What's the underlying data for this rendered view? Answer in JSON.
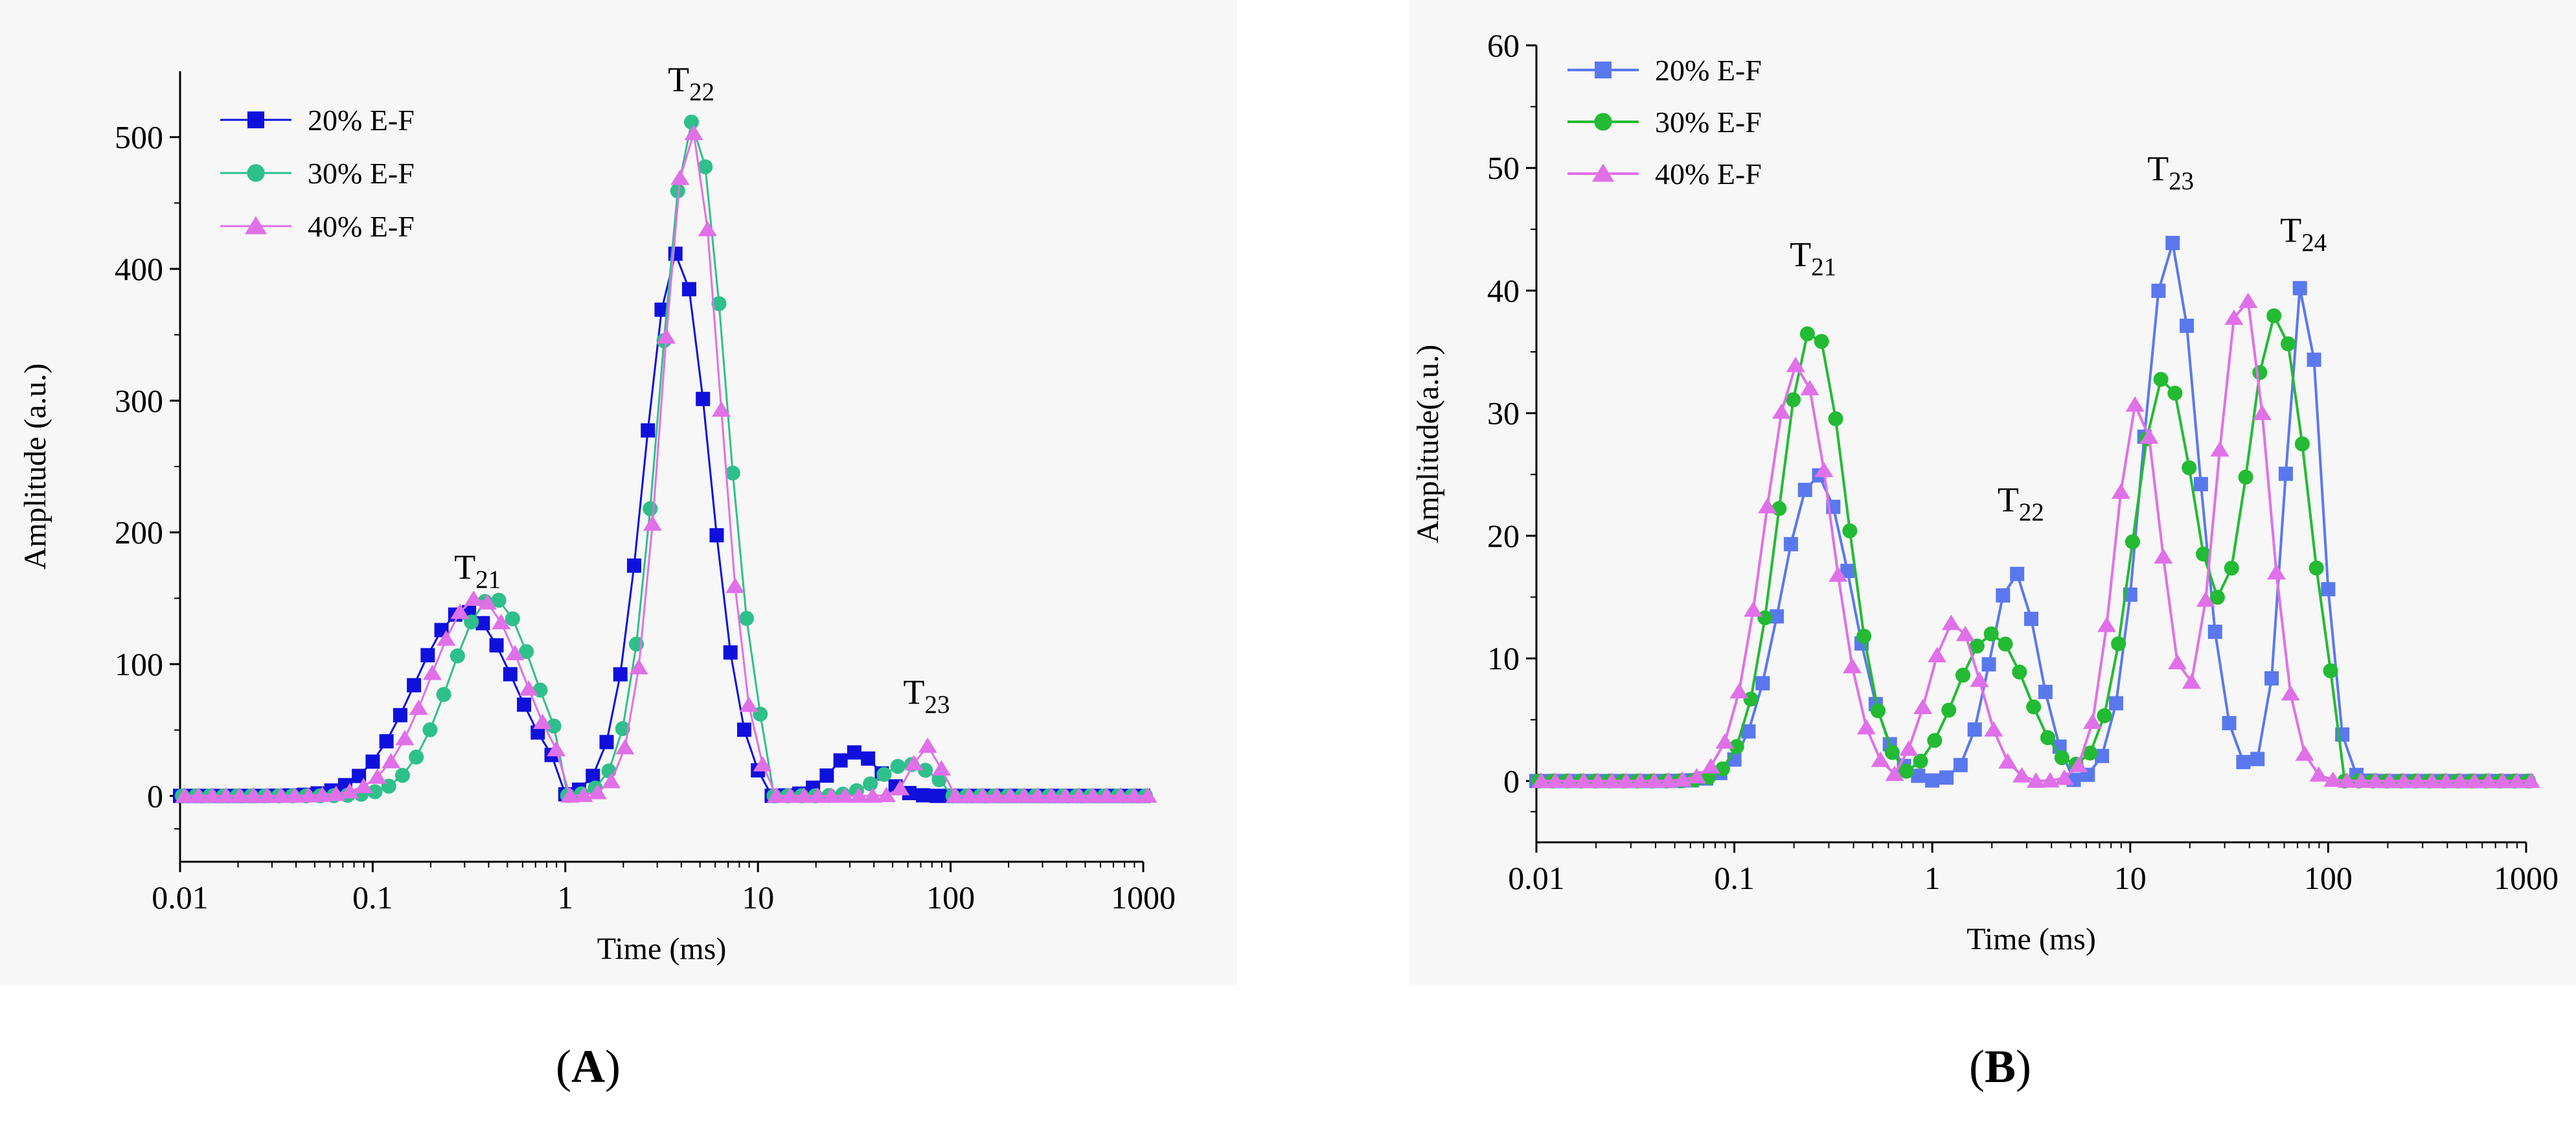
{
  "panels": [
    {
      "panel_label": "A",
      "chart_data": {
        "type": "line",
        "x_scale": "log",
        "xlabel": "Time (ms)",
        "ylabel": "Amplitude (a.u.)",
        "xlim": [
          0.01,
          1000
        ],
        "ylim": [
          -50,
          550
        ],
        "x_ticks": [
          "0.01",
          "0.1",
          "1",
          "10",
          "100",
          "1000"
        ],
        "y_ticks": [
          "0",
          "100",
          "200",
          "300",
          "400",
          "500"
        ],
        "legend_position": "top-left",
        "annotations": [
          {
            "base": "T",
            "sub": "21",
            "x": 0.35,
            "y": 165
          },
          {
            "base": "T",
            "sub": "22",
            "x": 4.5,
            "y": 535
          },
          {
            "base": "T",
            "sub": "23",
            "x": 75,
            "y": 70
          }
        ],
        "series": [
          {
            "name": "20% E-F",
            "color": "#1010dd",
            "marker": "square",
            "peaks": [
              {
                "c": 0.3,
                "w": 0.26,
                "a": 140
              },
              {
                "c": 3.8,
                "w": 0.17,
                "a": 412
              },
              {
                "c": 32,
                "w": 0.12,
                "a": 33
              }
            ],
            "cutoffs": [
              0.85,
              10.5,
              80
            ]
          },
          {
            "name": "30% E-F",
            "color": "#2ec08a",
            "marker": "circle",
            "peaks": [
              {
                "c": 0.42,
                "w": 0.22,
                "a": 150
              },
              {
                "c": 4.6,
                "w": 0.17,
                "a": 512
              },
              {
                "c": 60,
                "w": 0.14,
                "a": 24
              }
            ],
            "cutoffs": [
              0.92,
              12.0,
              100
            ]
          },
          {
            "name": "40% E-F",
            "color": "#e070e8",
            "marker": "triangle",
            "peaks": [
              {
                "c": 0.35,
                "w": 0.24,
                "a": 150
              },
              {
                "c": 4.5,
                "w": 0.15,
                "a": 505
              },
              {
                "c": 75,
                "w": 0.07,
                "a": 38
              }
            ],
            "cutoffs": [
              0.95,
              10.8,
              100
            ]
          }
        ]
      }
    },
    {
      "panel_label": "B",
      "chart_data": {
        "type": "line",
        "x_scale": "log",
        "xlabel": "Time (ms)",
        "ylabel": "Amplitude(a.u.)",
        "xlim": [
          0.01,
          1000
        ],
        "ylim": [
          -5,
          60
        ],
        "x_ticks": [
          "0.01",
          "0.1",
          "1",
          "10",
          "100",
          "1000"
        ],
        "y_ticks": [
          "0",
          "10",
          "20",
          "30",
          "40",
          "50",
          "60"
        ],
        "legend_position": "top-left",
        "annotations": [
          {
            "base": "T",
            "sub": "21",
            "x": 0.25,
            "y": 42
          },
          {
            "base": "T",
            "sub": "22",
            "x": 2.8,
            "y": 22
          },
          {
            "base": "T",
            "sub": "23",
            "x": 16,
            "y": 49
          },
          {
            "base": "T",
            "sub": "24",
            "x": 75,
            "y": 44
          }
        ],
        "series": [
          {
            "name": "20% E-F",
            "color": "#5a78ee",
            "marker": "square",
            "peaks": [
              {
                "c": 0.26,
                "w": 0.18,
                "a": 25
              },
              {
                "c": 2.6,
                "w": 0.12,
                "a": 17
              },
              {
                "c": 16,
                "w": 0.14,
                "a": 44
              },
              {
                "c": 75,
                "w": 0.09,
                "a": 41
              }
            ],
            "cutoffs": [
              0.85,
              5.0,
              115
            ]
          },
          {
            "name": "30% E-F",
            "color": "#22bb33",
            "marker": "circle",
            "peaks": [
              {
                "c": 0.25,
                "w": 0.17,
                "a": 37
              },
              {
                "c": 2.0,
                "w": 0.18,
                "a": 12
              },
              {
                "c": 15,
                "w": 0.16,
                "a": 33
              },
              {
                "c": 55,
                "w": 0.16,
                "a": 38
              }
            ],
            "cutoffs": [
              0.85,
              115
            ]
          },
          {
            "name": "40% E-F",
            "color": "#e070e8",
            "marker": "triangle",
            "peaks": [
              {
                "c": 0.21,
                "w": 0.17,
                "a": 34
              },
              {
                "c": 1.3,
                "w": 0.13,
                "a": 13
              },
              {
                "c": 11,
                "w": 0.12,
                "a": 31
              },
              {
                "c": 37,
                "w": 0.13,
                "a": 40
              }
            ],
            "cutoffs": [
              0.7,
              3.0,
              115
            ]
          }
        ]
      }
    }
  ]
}
